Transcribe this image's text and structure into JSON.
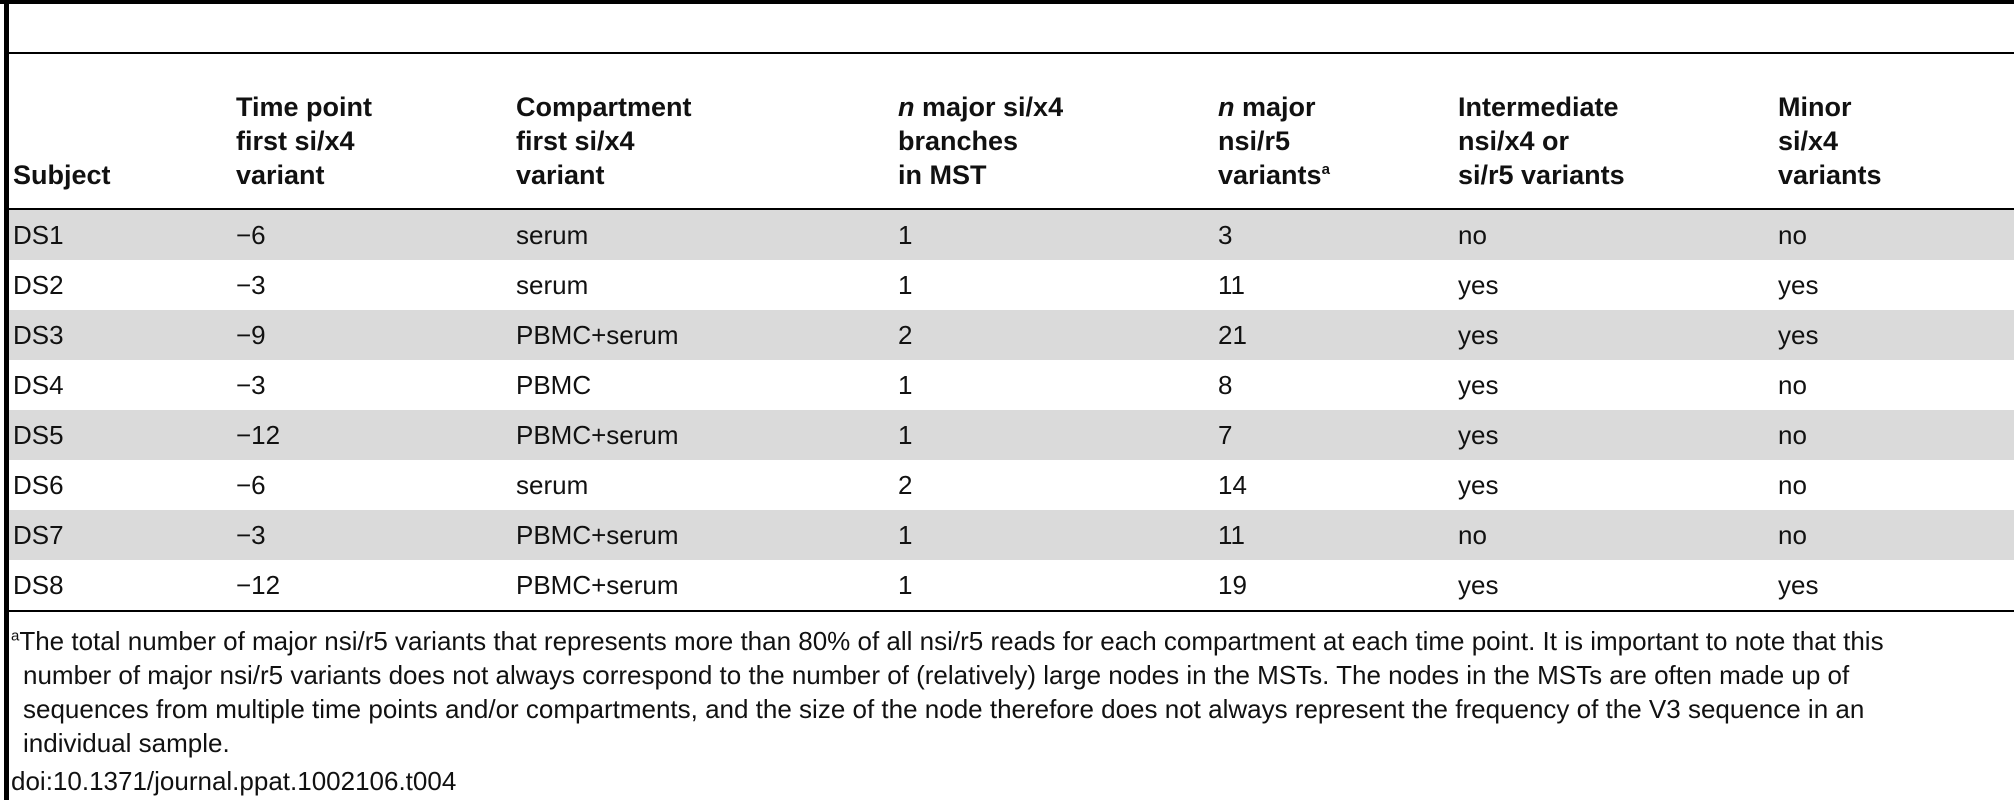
{
  "table": {
    "headers": [
      [
        "Subject"
      ],
      [
        "Time point",
        "first si/x4",
        "variant"
      ],
      [
        "Compartment",
        "first si/x4",
        "variant"
      ],
      [
        {
          "italic": "n",
          "text": " major si/x4"
        },
        "branches",
        "in MST"
      ],
      [
        {
          "italic": "n",
          "text": " major"
        },
        "nsi/r5",
        {
          "text": "variants",
          "sup": "a"
        }
      ],
      [
        "Intermediate",
        "nsi/x4 or",
        "si/r5 variants"
      ],
      [
        "Minor",
        "si/x4",
        "variants"
      ]
    ],
    "rows": [
      [
        "DS1",
        "−6",
        "serum",
        "1",
        "3",
        "no",
        "no"
      ],
      [
        "DS2",
        "−3",
        "serum",
        "1",
        "11",
        "yes",
        "yes"
      ],
      [
        "DS3",
        "−9",
        "PBMC+serum",
        "2",
        "21",
        "yes",
        "yes"
      ],
      [
        "DS4",
        "−3",
        "PBMC",
        "1",
        "8",
        "yes",
        "no"
      ],
      [
        "DS5",
        "−12",
        "PBMC+serum",
        "1",
        "7",
        "yes",
        "no"
      ],
      [
        "DS6",
        "−6",
        "serum",
        "2",
        "14",
        "yes",
        "no"
      ],
      [
        "DS7",
        "−3",
        "PBMC+serum",
        "1",
        "11",
        "no",
        "no"
      ],
      [
        "DS8",
        "−12",
        "PBMC+serum",
        "1",
        "19",
        "yes",
        "yes"
      ]
    ]
  },
  "footnote": {
    "marker": "a",
    "lines": [
      "The total number of major nsi/r5 variants that represents more than 80% of all nsi/r5 reads for each compartment at each time point. It is important to note that this",
      "number of major nsi/r5 variants does not always correspond to the number of (relatively) large nodes in the MSTs. The nodes in the MSTs are often made up of",
      "sequences from multiple time points and/or compartments, and the size of the node therefore does not always represent the frequency of the V3 sequence in an",
      "individual sample."
    ]
  },
  "doi": "doi:10.1371/journal.ppat.1002106.t004"
}
